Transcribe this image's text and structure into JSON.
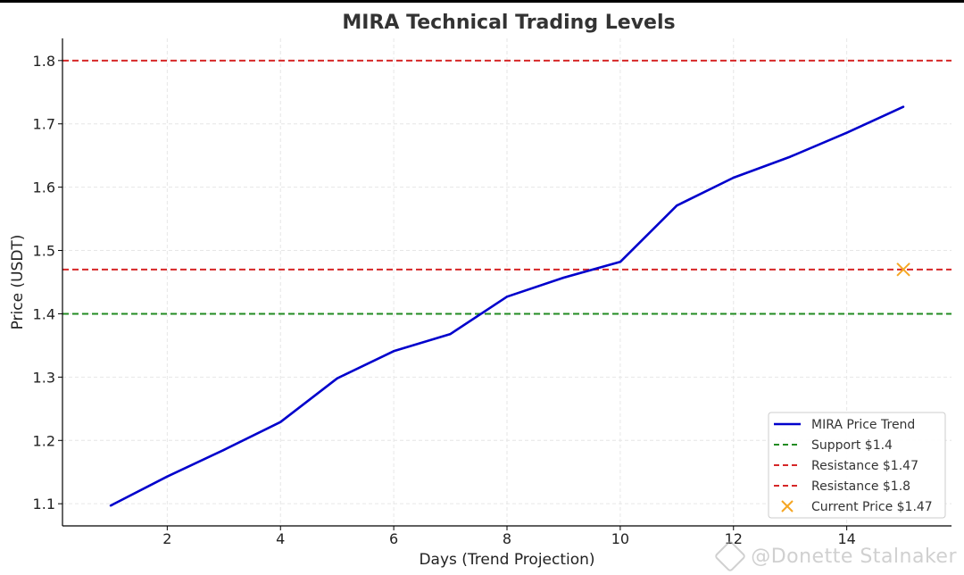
{
  "watermark": "@Donette Stalnaker",
  "colors": {
    "trend": "#0000cc",
    "support": "#228b22",
    "resistance": "#d62728",
    "current": "#f5a623",
    "axis": "#000000",
    "grid": "#e6e6e6"
  },
  "chart_data": {
    "type": "line",
    "title": "MIRA Technical Trading Levels",
    "xlabel": "Days (Trend Projection)",
    "ylabel": "Price (USDT)",
    "xlim": [
      0.15,
      15.85
    ],
    "ylim": [
      1.065,
      1.835
    ],
    "xticks": [
      2,
      4,
      6,
      8,
      10,
      12,
      14
    ],
    "yticks": [
      1.1,
      1.2,
      1.3,
      1.4,
      1.5,
      1.6,
      1.7,
      1.8
    ],
    "grid": true,
    "legend_position": "bottom-right",
    "series": [
      {
        "name": "MIRA Price Trend",
        "x": [
          1,
          2,
          3,
          4,
          5,
          6,
          7,
          8,
          9,
          10,
          11,
          12,
          13,
          14,
          15
        ],
        "y": [
          1.097,
          1.143,
          1.185,
          1.229,
          1.298,
          1.341,
          1.368,
          1.427,
          1.457,
          1.482,
          1.571,
          1.615,
          1.648,
          1.686,
          1.727
        ]
      }
    ],
    "hlines": [
      {
        "name": "Support $1.4",
        "y": 1.4,
        "color": "support"
      },
      {
        "name": "Resistance $1.47",
        "y": 1.47,
        "color": "resistance"
      },
      {
        "name": "Resistance $1.8",
        "y": 1.8,
        "color": "resistance"
      }
    ],
    "points": [
      {
        "name": "Current Price $1.47",
        "x": 15,
        "y": 1.47,
        "marker": "x",
        "color": "current"
      }
    ],
    "legend": [
      "MIRA Price Trend",
      "Support $1.4",
      "Resistance $1.47",
      "Resistance $1.8",
      "Current Price $1.47"
    ]
  }
}
